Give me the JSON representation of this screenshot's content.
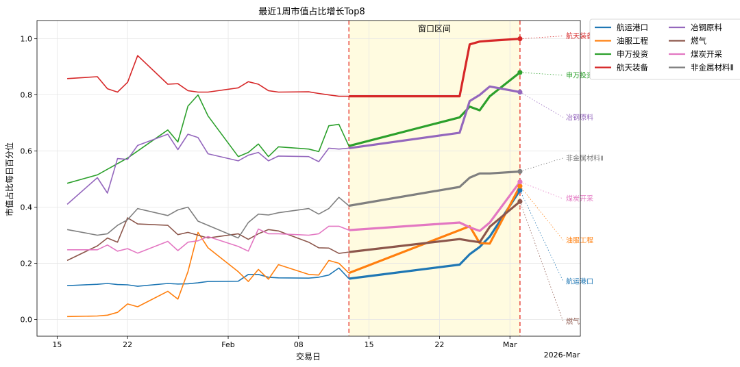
{
  "chart_data": {
    "type": "line",
    "title": "最近1周市值占比增长Top8",
    "xlabel": "交易日",
    "ylabel": "市值占比每日百分位",
    "x_axis_offset_label": "2026-Mar",
    "ylim": [
      -0.06,
      1.065
    ],
    "yticks": [
      0.0,
      0.2,
      0.4,
      0.6,
      0.8,
      1.0
    ],
    "ytick_labels": [
      "0.0",
      "0.2",
      "0.4",
      "0.6",
      "0.8",
      "1.0"
    ],
    "xlim": [
      "2026-01-13",
      "2026-03-08"
    ],
    "xticks": [
      "2026-01-15",
      "2026-01-22",
      "2026-02-01",
      "2026-02-08",
      "2026-02-15",
      "2026-02-22",
      "2026-03-01"
    ],
    "xtick_labels": [
      "15",
      "22",
      "Feb",
      "08",
      "15",
      "22",
      "Mar"
    ],
    "window": {
      "start": "2026-02-13",
      "end": "2026-03-02",
      "label": "窗口区间",
      "fill_color": "#fffbe0",
      "line_color": "#e8473f"
    },
    "grid": true,
    "legend_position": "outside-top-right",
    "legend_columns": 2,
    "series": [
      {
        "name": "航运港口",
        "color": "#1f77b4",
        "end_label": "航运港口",
        "end_label_value": 0.135,
        "x": [
          "2026-01-16",
          "2026-01-19",
          "2026-01-20",
          "2026-01-21",
          "2026-01-22",
          "2026-01-23",
          "2026-01-26",
          "2026-01-27",
          "2026-01-28",
          "2026-01-29",
          "2026-01-30",
          "2026-02-02",
          "2026-02-03",
          "2026-02-04",
          "2026-02-05",
          "2026-02-06",
          "2026-02-09",
          "2026-02-10",
          "2026-02-11",
          "2026-02-12",
          "2026-02-13",
          "2026-02-24",
          "2026-02-25",
          "2026-02-26",
          "2026-02-27",
          "2026-03-02"
        ],
        "values": [
          0.12,
          0.125,
          0.128,
          0.124,
          0.123,
          0.118,
          0.128,
          0.126,
          0.127,
          0.13,
          0.135,
          0.136,
          0.16,
          0.16,
          0.15,
          0.148,
          0.147,
          0.15,
          0.158,
          0.183,
          0.145,
          0.195,
          0.232,
          0.258,
          0.295,
          0.46
        ]
      },
      {
        "name": "油服工程",
        "color": "#ff7f0e",
        "end_label": "油服工程",
        "end_label_value": 0.282,
        "x": [
          "2026-01-16",
          "2026-01-19",
          "2026-01-20",
          "2026-01-21",
          "2026-01-22",
          "2026-01-23",
          "2026-01-26",
          "2026-01-27",
          "2026-01-28",
          "2026-01-29",
          "2026-01-30",
          "2026-02-02",
          "2026-02-03",
          "2026-02-04",
          "2026-02-05",
          "2026-02-06",
          "2026-02-09",
          "2026-02-10",
          "2026-02-11",
          "2026-02-12",
          "2026-02-13",
          "2026-02-24",
          "2026-02-25",
          "2026-02-26",
          "2026-02-27",
          "2026-03-02"
        ],
        "values": [
          0.01,
          0.012,
          0.015,
          0.025,
          0.055,
          0.045,
          0.1,
          0.072,
          0.17,
          0.31,
          0.255,
          0.17,
          0.135,
          0.178,
          0.143,
          0.195,
          0.16,
          0.158,
          0.21,
          0.2,
          0.165,
          0.318,
          0.332,
          0.272,
          0.27,
          0.475
        ]
      },
      {
        "name": "申万投资",
        "color": "#2ca02c",
        "end_label": "申万投资",
        "end_label_value": 0.87,
        "x": [
          "2026-01-16",
          "2026-01-19",
          "2026-01-20",
          "2026-01-21",
          "2026-01-22",
          "2026-01-26",
          "2026-01-27",
          "2026-01-28",
          "2026-01-29",
          "2026-01-30",
          "2026-02-02",
          "2026-02-03",
          "2026-02-04",
          "2026-02-05",
          "2026-02-06",
          "2026-02-09",
          "2026-02-10",
          "2026-02-11",
          "2026-02-12",
          "2026-02-13",
          "2026-02-24",
          "2026-02-25",
          "2026-02-26",
          "2026-02-27",
          "2026-03-02"
        ],
        "values": [
          0.485,
          0.515,
          0.535,
          0.555,
          0.575,
          0.675,
          0.632,
          0.76,
          0.8,
          0.725,
          0.58,
          0.595,
          0.625,
          0.58,
          0.615,
          0.607,
          0.598,
          0.69,
          0.695,
          0.618,
          0.72,
          0.758,
          0.745,
          0.795,
          0.88
        ]
      },
      {
        "name": "航天装备",
        "color": "#d62728",
        "end_label": "航天装备",
        "end_label_value": 1.01,
        "x": [
          "2026-01-16",
          "2026-01-19",
          "2026-01-20",
          "2026-01-21",
          "2026-01-22",
          "2026-01-23",
          "2026-01-26",
          "2026-01-27",
          "2026-01-28",
          "2026-01-29",
          "2026-01-30",
          "2026-02-02",
          "2026-02-03",
          "2026-02-04",
          "2026-02-05",
          "2026-02-06",
          "2026-02-09",
          "2026-02-10",
          "2026-02-11",
          "2026-02-12",
          "2026-02-13",
          "2026-02-24",
          "2026-02-25",
          "2026-02-26",
          "2026-02-27",
          "2026-03-02"
        ],
        "values": [
          0.858,
          0.865,
          0.822,
          0.81,
          0.845,
          0.94,
          0.838,
          0.84,
          0.815,
          0.81,
          0.81,
          0.825,
          0.847,
          0.838,
          0.815,
          0.81,
          0.811,
          0.805,
          0.8,
          0.795,
          0.795,
          0.795,
          0.98,
          0.99,
          0.993,
          1.0
        ]
      },
      {
        "name": "冶钢原料",
        "color": "#9467bd",
        "end_label": "冶钢原料",
        "end_label_value": 0.72,
        "x": [
          "2026-01-16",
          "2026-01-19",
          "2026-01-20",
          "2026-01-21",
          "2026-01-22",
          "2026-01-23",
          "2026-01-26",
          "2026-01-27",
          "2026-01-28",
          "2026-01-29",
          "2026-01-30",
          "2026-02-02",
          "2026-02-03",
          "2026-02-04",
          "2026-02-05",
          "2026-02-06",
          "2026-02-09",
          "2026-02-10",
          "2026-02-11",
          "2026-02-12",
          "2026-02-13",
          "2026-02-24",
          "2026-02-25",
          "2026-02-26",
          "2026-02-27",
          "2026-03-02"
        ],
        "values": [
          0.41,
          0.505,
          0.45,
          0.573,
          0.57,
          0.62,
          0.66,
          0.605,
          0.66,
          0.648,
          0.59,
          0.565,
          0.585,
          0.595,
          0.565,
          0.582,
          0.58,
          0.562,
          0.61,
          0.607,
          0.61,
          0.665,
          0.778,
          0.8,
          0.83,
          0.81
        ]
      },
      {
        "name": "燃气",
        "color": "#8c564b",
        "end_label": "燃气",
        "end_label_value": -0.008,
        "x": [
          "2026-01-16",
          "2026-01-19",
          "2026-01-20",
          "2026-01-21",
          "2026-01-22",
          "2026-01-23",
          "2026-01-26",
          "2026-01-27",
          "2026-01-28",
          "2026-01-29",
          "2026-01-30",
          "2026-02-02",
          "2026-02-03",
          "2026-02-04",
          "2026-02-05",
          "2026-02-06",
          "2026-02-09",
          "2026-02-10",
          "2026-02-11",
          "2026-02-12",
          "2026-02-13",
          "2026-02-24",
          "2026-02-25",
          "2026-02-26",
          "2026-02-27",
          "2026-03-02"
        ],
        "values": [
          0.21,
          0.262,
          0.29,
          0.275,
          0.362,
          0.34,
          0.335,
          0.302,
          0.31,
          0.3,
          0.29,
          0.305,
          0.285,
          0.305,
          0.32,
          0.315,
          0.275,
          0.255,
          0.254,
          0.235,
          0.24,
          0.286,
          0.28,
          0.275,
          0.33,
          0.42
        ]
      },
      {
        "name": "煤炭开采",
        "color": "#e377c2",
        "end_label": "煤炭开采",
        "end_label_value": 0.43,
        "x": [
          "2026-01-16",
          "2026-01-19",
          "2026-01-20",
          "2026-01-21",
          "2026-01-22",
          "2026-01-23",
          "2026-01-26",
          "2026-01-27",
          "2026-01-28",
          "2026-01-29",
          "2026-01-30",
          "2026-02-02",
          "2026-02-03",
          "2026-02-04",
          "2026-02-05",
          "2026-02-06",
          "2026-02-09",
          "2026-02-10",
          "2026-02-11",
          "2026-02-12",
          "2026-02-13",
          "2026-02-24",
          "2026-02-25",
          "2026-02-26",
          "2026-02-27",
          "2026-03-02"
        ],
        "values": [
          0.248,
          0.248,
          0.265,
          0.243,
          0.252,
          0.236,
          0.278,
          0.245,
          0.275,
          0.28,
          0.295,
          0.26,
          0.243,
          0.322,
          0.305,
          0.305,
          0.3,
          0.305,
          0.332,
          0.332,
          0.318,
          0.345,
          0.328,
          0.315,
          0.345,
          0.49
        ]
      },
      {
        "name": "非金属材料Ⅱ",
        "color": "#7f7f7f",
        "end_label": "非金属材料Ⅱ",
        "end_label_value": 0.575,
        "x": [
          "2026-01-16",
          "2026-01-19",
          "2026-01-20",
          "2026-01-21",
          "2026-01-22",
          "2026-01-23",
          "2026-01-26",
          "2026-01-27",
          "2026-01-28",
          "2026-01-29",
          "2026-01-30",
          "2026-02-02",
          "2026-02-03",
          "2026-02-04",
          "2026-02-05",
          "2026-02-06",
          "2026-02-09",
          "2026-02-10",
          "2026-02-11",
          "2026-02-12",
          "2026-02-13",
          "2026-02-24",
          "2026-02-25",
          "2026-02-26",
          "2026-02-27",
          "2026-03-02"
        ],
        "values": [
          0.32,
          0.3,
          0.305,
          0.335,
          0.355,
          0.395,
          0.37,
          0.39,
          0.4,
          0.35,
          0.335,
          0.29,
          0.345,
          0.375,
          0.372,
          0.38,
          0.395,
          0.375,
          0.395,
          0.435,
          0.405,
          0.472,
          0.505,
          0.52,
          0.52,
          0.527
        ]
      }
    ]
  }
}
